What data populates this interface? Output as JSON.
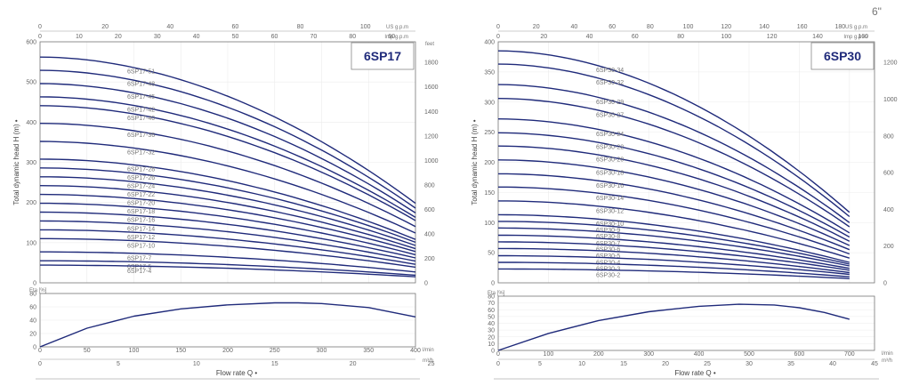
{
  "page": {
    "corner_label": "6\"",
    "curve_color": "#1f2a7a"
  },
  "chart_data": [
    {
      "type": "line",
      "model": "6SP17",
      "ylabel": "Total dynamic head H (m) •",
      "eta_label": "Eta [%]",
      "xlabel": "Flow rate  Q  •",
      "x_unit": "l/min",
      "x_m3h_unit": "m³/h",
      "top_unit_us": "US g.p.m",
      "top_unit_imp": "Imp g.p.m",
      "feet_label": "feet",
      "xlim": [
        0,
        400
      ],
      "ylim": [
        0,
        600
      ],
      "eta_ylim": [
        0,
        80
      ],
      "x_ticks": [
        0,
        50,
        100,
        150,
        200,
        250,
        300,
        350,
        400
      ],
      "y_ticks": [
        0,
        100,
        200,
        300,
        400,
        500,
        600
      ],
      "eta_ticks": [
        0,
        20,
        40,
        60,
        80
      ],
      "m3h_ticks": [
        0,
        5,
        10,
        15,
        20,
        25
      ],
      "us_ticks": [
        0,
        20,
        40,
        60,
        80,
        100
      ],
      "imp_ticks": [
        0,
        10,
        20,
        30,
        40,
        50,
        60,
        70,
        80,
        90
      ],
      "feet_ticks": [
        0,
        200,
        400,
        600,
        800,
        1000,
        1200,
        1400,
        1600,
        1800
      ],
      "curve_end_x": 400,
      "series": [
        {
          "name": "6SP17-51",
          "h0": 562,
          "h_end": 198
        },
        {
          "name": "6SP17-48",
          "h0": 529,
          "h_end": 186
        },
        {
          "name": "6SP17-45",
          "h0": 496,
          "h_end": 174
        },
        {
          "name": "6SP17-42",
          "h0": 463,
          "h_end": 163
        },
        {
          "name": "6SP17-40",
          "h0": 441,
          "h_end": 155
        },
        {
          "name": "6SP17-36",
          "h0": 397,
          "h_end": 140
        },
        {
          "name": "6SP17-32",
          "h0": 352,
          "h_end": 124
        },
        {
          "name": "6SP17-28",
          "h0": 308,
          "h_end": 108
        },
        {
          "name": "6SP17-26",
          "h0": 286,
          "h_end": 101
        },
        {
          "name": "6SP17-24",
          "h0": 264,
          "h_end": 93
        },
        {
          "name": "6SP17-22",
          "h0": 242,
          "h_end": 85
        },
        {
          "name": "6SP17-20",
          "h0": 220,
          "h_end": 78
        },
        {
          "name": "6SP17-18",
          "h0": 198,
          "h_end": 70
        },
        {
          "name": "6SP17-16",
          "h0": 176,
          "h_end": 62
        },
        {
          "name": "6SP17-14",
          "h0": 154,
          "h_end": 54
        },
        {
          "name": "6SP17-12",
          "h0": 132,
          "h_end": 46
        },
        {
          "name": "6SP17-10",
          "h0": 110,
          "h_end": 39
        },
        {
          "name": "6SP17-7",
          "h0": 77,
          "h_end": 27
        },
        {
          "name": "6SP17-5",
          "h0": 55,
          "h_end": 19
        },
        {
          "name": "6SP17-4",
          "h0": 44,
          "h_end": 15
        }
      ],
      "eta": {
        "x": [
          0,
          50,
          100,
          150,
          200,
          250,
          275,
          300,
          350,
          400
        ],
        "y": [
          0,
          28,
          46,
          57,
          63,
          66,
          66,
          65,
          59,
          45
        ]
      }
    },
    {
      "type": "line",
      "model": "6SP30",
      "ylabel": "Total dynamic head H (m) •",
      "eta_label": "Eta [%]",
      "xlabel": "Flow rate  Q  •",
      "x_unit": "l/min",
      "x_m3h_unit": "m³/h",
      "top_unit_us": "US g.p.m",
      "top_unit_imp": "Imp g.p.m",
      "feet_label": "",
      "xlim": [
        0,
        750
      ],
      "ylim": [
        0,
        400
      ],
      "eta_ylim": [
        0,
        80
      ],
      "x_ticks": [
        0,
        100,
        200,
        300,
        400,
        500,
        600,
        700
      ],
      "y_ticks": [
        0,
        50,
        100,
        150,
        200,
        250,
        300,
        350,
        400
      ],
      "eta_ticks": [
        0,
        10,
        20,
        30,
        40,
        50,
        60,
        70,
        80
      ],
      "m3h_ticks": [
        0,
        5,
        10,
        15,
        20,
        25,
        30,
        35,
        40,
        45
      ],
      "us_ticks": [
        0,
        20,
        40,
        60,
        80,
        100,
        120,
        140,
        160,
        180
      ],
      "imp_ticks": [
        0,
        20,
        40,
        60,
        80,
        100,
        120,
        140,
        160
      ],
      "feet_ticks": [
        0,
        200,
        400,
        600,
        800,
        1000,
        1200
      ],
      "curve_end_x": 700,
      "series": [
        {
          "name": "6SP30-34",
          "h0": 385,
          "h_end": 117
        },
        {
          "name": "6SP30-32",
          "h0": 363,
          "h_end": 110
        },
        {
          "name": "6SP30-29",
          "h0": 329,
          "h_end": 100
        },
        {
          "name": "6SP30-27",
          "h0": 306,
          "h_end": 93
        },
        {
          "name": "6SP30-24",
          "h0": 272,
          "h_end": 83
        },
        {
          "name": "6SP30-22",
          "h0": 249,
          "h_end": 76
        },
        {
          "name": "6SP30-20",
          "h0": 227,
          "h_end": 69
        },
        {
          "name": "6SP30-18",
          "h0": 204,
          "h_end": 62
        },
        {
          "name": "6SP30-16",
          "h0": 181,
          "h_end": 55
        },
        {
          "name": "6SP30-14",
          "h0": 159,
          "h_end": 48
        },
        {
          "name": "6SP30-12",
          "h0": 136,
          "h_end": 41
        },
        {
          "name": "6SP30-10",
          "h0": 113,
          "h_end": 34
        },
        {
          "name": "6SP30-9",
          "h0": 102,
          "h_end": 31
        },
        {
          "name": "6SP30-8",
          "h0": 91,
          "h_end": 28
        },
        {
          "name": "6SP30-7",
          "h0": 79,
          "h_end": 24
        },
        {
          "name": "6SP30-6",
          "h0": 68,
          "h_end": 21
        },
        {
          "name": "6SP30-5",
          "h0": 57,
          "h_end": 17
        },
        {
          "name": "6SP30-4",
          "h0": 45,
          "h_end": 14
        },
        {
          "name": "6SP30-3",
          "h0": 34,
          "h_end": 10
        },
        {
          "name": "6SP30-2",
          "h0": 23,
          "h_end": 7
        }
      ],
      "eta": {
        "x": [
          0,
          100,
          200,
          300,
          400,
          480,
          550,
          600,
          650,
          700
        ],
        "y": [
          0,
          25,
          44,
          57,
          65,
          68,
          67,
          63,
          56,
          46
        ]
      }
    }
  ]
}
